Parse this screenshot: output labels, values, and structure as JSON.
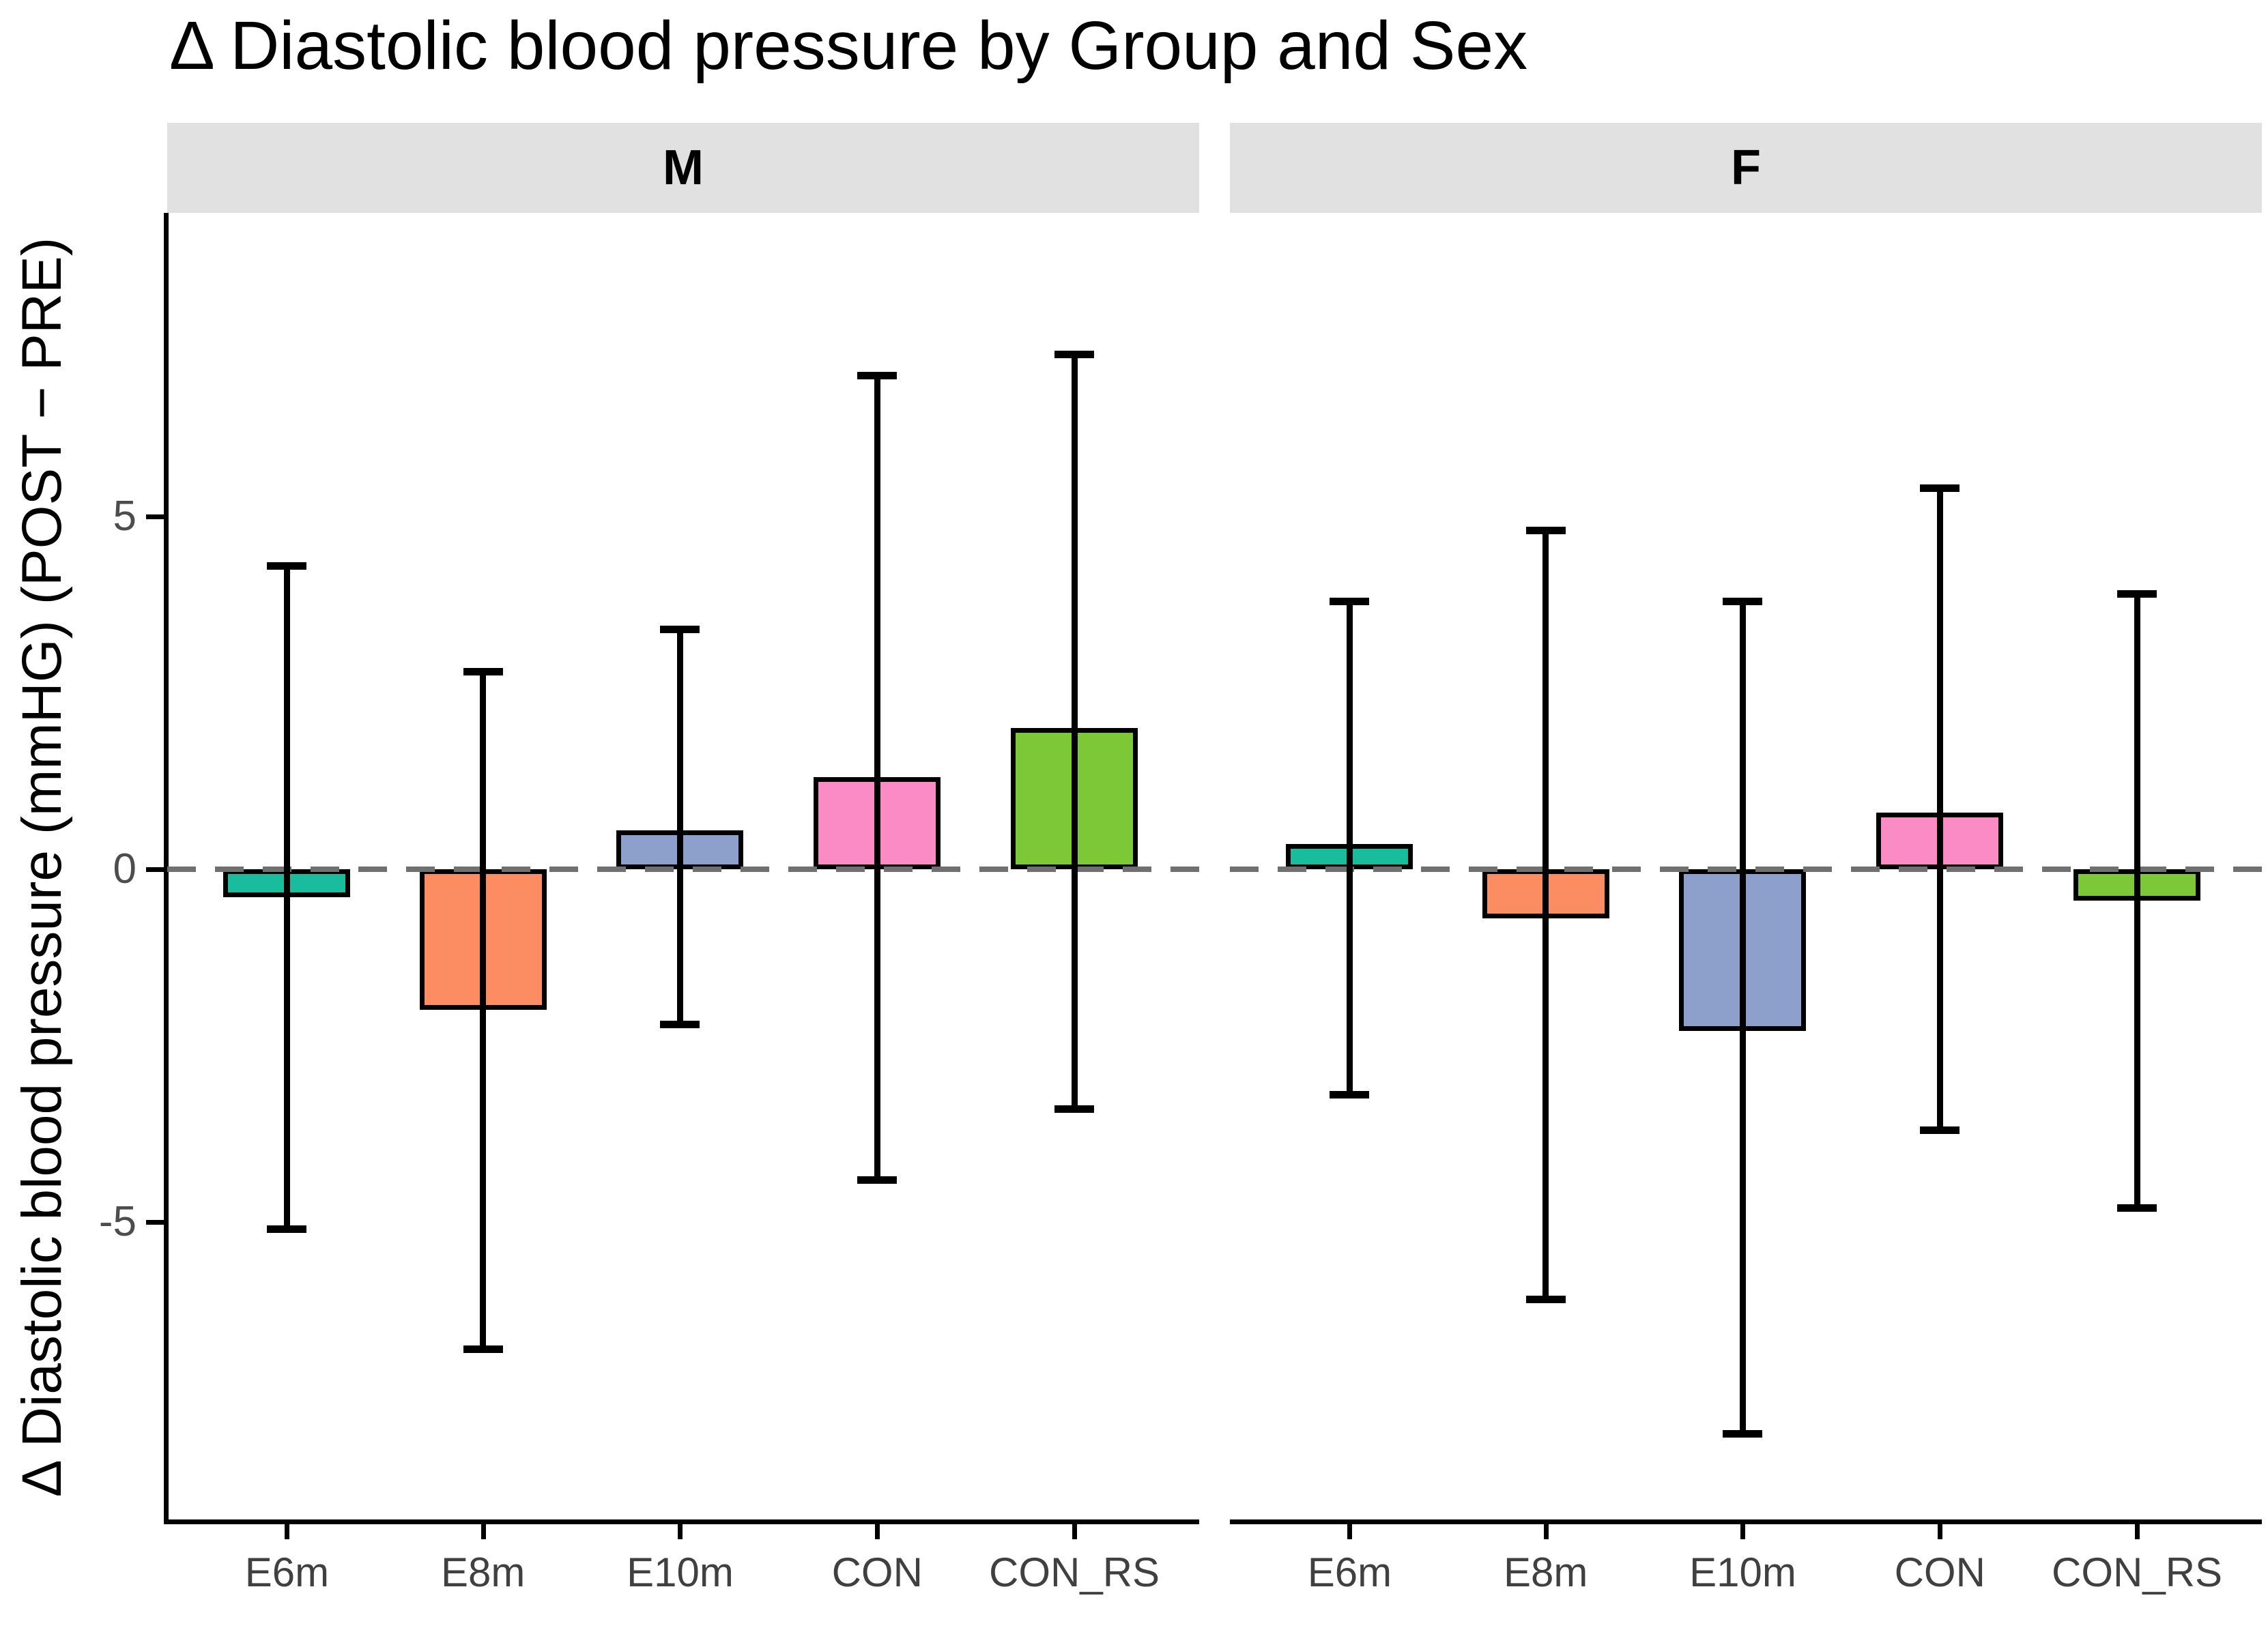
{
  "chart_data": {
    "type": "bar",
    "title": "Δ Diastolic blood pressure by Group and Sex",
    "ylabel": "Δ Diastolic blood pressure (mmHG) (POST − PRE)",
    "xlabel": "",
    "legend": "none",
    "grid": "off",
    "ylim": [
      -9.25,
      9.3
    ],
    "yticks": [
      {
        "label": "5",
        "value": 5
      },
      {
        "label": "0",
        "value": 0
      },
      {
        "label": "-5",
        "value": -5
      }
    ],
    "zero_line": {
      "style": "dashed",
      "color": "#707070",
      "value": 0
    },
    "categories": [
      "E6m",
      "E8m",
      "E10m",
      "CON",
      "CON_RS"
    ],
    "bar_colors": [
      "#19BC9C",
      "#FC8D62",
      "#8DA0CB",
      "#FA8BC5",
      "#7CC837"
    ],
    "facets": [
      {
        "name": "M",
        "categories": [
          "E6m",
          "E8m",
          "E10m",
          "CON",
          "CON_RS"
        ],
        "values": [
          -0.4,
          -2.0,
          0.55,
          1.3,
          2.0
        ],
        "error_low": [
          -5.1,
          -6.8,
          -2.2,
          -4.4,
          -3.4
        ],
        "error_high": [
          4.3,
          2.8,
          3.4,
          7.0,
          7.3
        ]
      },
      {
        "name": "F",
        "categories": [
          "E6m",
          "E8m",
          "E10m",
          "CON",
          "CON_RS"
        ],
        "values": [
          0.35,
          -0.7,
          -2.3,
          0.8,
          -0.45
        ],
        "error_low": [
          -3.2,
          -6.1,
          -8.0,
          -3.7,
          -4.8
        ],
        "error_high": [
          3.8,
          4.8,
          3.8,
          5.4,
          3.9
        ]
      }
    ]
  }
}
